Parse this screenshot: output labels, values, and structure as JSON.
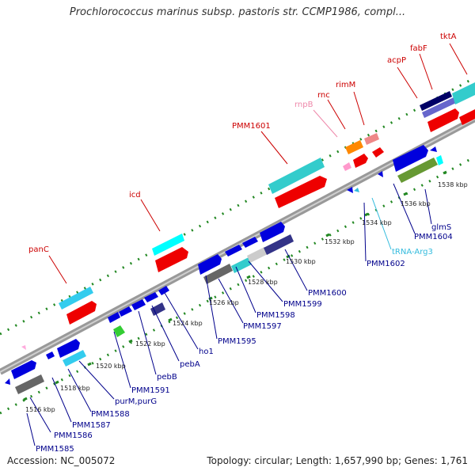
{
  "title": "Prochlorococcus marinus subsp. pastoris str. CCMP1986, compl...",
  "footer": {
    "accession": "Accession: NC_005072",
    "summary": "Topology: circular; Length: 1,657,990 bp; Genes: 1,761"
  },
  "colors": {
    "upper_label": "#cc0000",
    "lower_label": "#00008b",
    "rnpB_label": "#ee88aa",
    "trna_label": "#33bbdd",
    "backbone": "#999999",
    "dots": "#228822"
  },
  "scale_ticks": [
    "1516 kbp",
    "1518 kbp",
    "1520 kbp",
    "1522 kbp",
    "1524 kbp",
    "1526 kbp",
    "1528 kbp",
    "1530 kbp",
    "1532 kbp",
    "1534 kbp",
    "1536 kbp",
    "1538 kbp"
  ],
  "upper_labels": [
    "panC",
    "icd",
    "PMM1601",
    "rnpB",
    "rnc",
    "rimM",
    "acpP",
    "fabF",
    "tktA"
  ],
  "lower_labels": [
    "PMM1585",
    "PMM1586",
    "PMM1587",
    "PMM1588",
    "purM,purG",
    "PMM1591",
    "pebB",
    "pebA",
    "ho1",
    "PMM1595",
    "PMM1597",
    "PMM1598",
    "PMM1599",
    "PMM1600",
    "PMM1602",
    "tRNA-Arg3",
    "PMM1604",
    "glmS"
  ]
}
